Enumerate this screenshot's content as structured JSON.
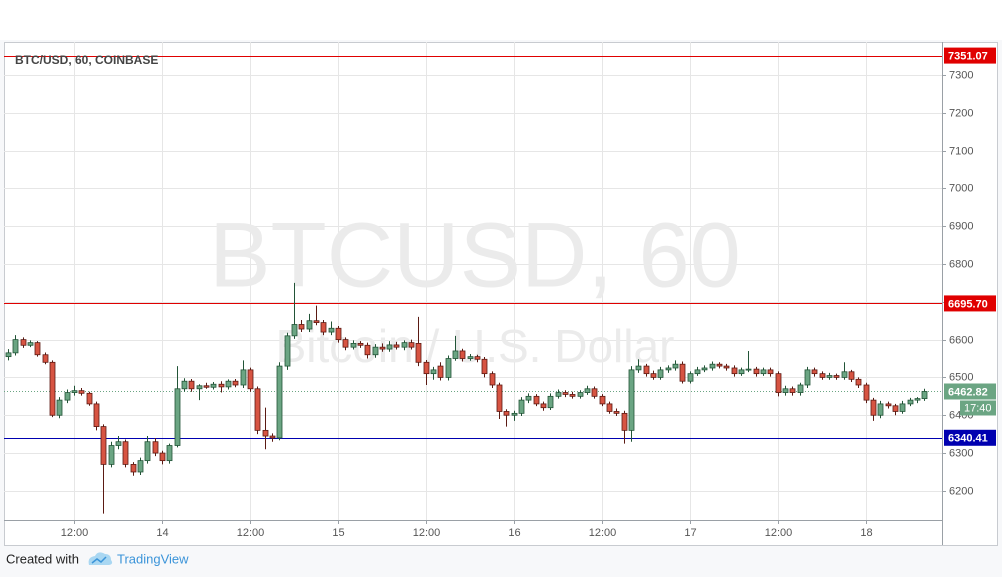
{
  "chart_data": {
    "type": "candlestick",
    "title": "BTC/USD, 60, COINBASE",
    "watermark": "BTCUSD, 60",
    "watermark_subtitle": "Bitcoin / U.S. Dollar",
    "categories": [
      null,
      null,
      null,
      null,
      null,
      null,
      null,
      null,
      null,
      "12:00",
      null,
      null,
      null,
      null,
      null,
      null,
      null,
      null,
      null,
      null,
      null,
      "14",
      null,
      null,
      null,
      null,
      null,
      null,
      null,
      null,
      null,
      null,
      null,
      "12:00",
      null,
      null,
      null,
      null,
      null,
      null,
      null,
      null,
      null,
      null,
      null,
      "15",
      null,
      null,
      null,
      null,
      null,
      null,
      null,
      null,
      null,
      null,
      null,
      "12:00",
      null,
      null,
      null,
      null,
      null,
      null,
      null,
      null,
      null,
      null,
      null,
      "16",
      null,
      null,
      null,
      null,
      null,
      null,
      null,
      null,
      null,
      null,
      null,
      "12:00",
      null,
      null,
      null,
      null,
      null,
      null,
      null,
      null,
      null,
      null,
      null,
      "17",
      null,
      null,
      null,
      null,
      null,
      null,
      null,
      null,
      null,
      null,
      null,
      "12:00",
      null,
      null,
      null,
      null,
      null,
      null,
      null,
      null,
      null,
      null,
      null,
      "18",
      null,
      null,
      null,
      null,
      null,
      null,
      null,
      null
    ],
    "ohlc": [
      [
        6555,
        6575,
        6545,
        6565
      ],
      [
        6565,
        6612,
        6558,
        6600
      ],
      [
        6600,
        6606,
        6578,
        6585
      ],
      [
        6585,
        6598,
        6580,
        6592
      ],
      [
        6592,
        6596,
        6555,
        6560
      ],
      [
        6560,
        6566,
        6535,
        6540
      ],
      [
        6540,
        6545,
        6395,
        6400
      ],
      [
        6400,
        6448,
        6392,
        6440
      ],
      [
        6440,
        6468,
        6432,
        6460
      ],
      [
        6460,
        6478,
        6452,
        6465
      ],
      [
        6465,
        6472,
        6452,
        6458
      ],
      [
        6458,
        6462,
        6425,
        6430
      ],
      [
        6430,
        6436,
        6360,
        6370
      ],
      [
        6370,
        6376,
        6140,
        6270
      ],
      [
        6270,
        6330,
        6262,
        6320
      ],
      [
        6320,
        6345,
        6310,
        6330
      ],
      [
        6330,
        6336,
        6262,
        6270
      ],
      [
        6270,
        6276,
        6240,
        6250
      ],
      [
        6250,
        6288,
        6242,
        6280
      ],
      [
        6280,
        6345,
        6272,
        6330
      ],
      [
        6330,
        6340,
        6292,
        6300
      ],
      [
        6300,
        6306,
        6270,
        6280
      ],
      [
        6280,
        6325,
        6272,
        6320
      ],
      [
        6320,
        6530,
        6315,
        6470
      ],
      [
        6470,
        6498,
        6462,
        6490
      ],
      [
        6490,
        6496,
        6462,
        6470
      ],
      [
        6470,
        6482,
        6440,
        6478
      ],
      [
        6478,
        6486,
        6470,
        6474
      ],
      [
        6474,
        6488,
        6468,
        6482
      ],
      [
        6482,
        6490,
        6460,
        6475
      ],
      [
        6475,
        6495,
        6468,
        6490
      ],
      [
        6490,
        6496,
        6474,
        6480
      ],
      [
        6480,
        6545,
        6472,
        6520
      ],
      [
        6520,
        6526,
        6462,
        6470
      ],
      [
        6470,
        6476,
        6350,
        6360
      ],
      [
        6360,
        6420,
        6310,
        6345
      ],
      [
        6345,
        6352,
        6330,
        6340
      ],
      [
        6340,
        6540,
        6334,
        6530
      ],
      [
        6530,
        6618,
        6520,
        6610
      ],
      [
        6610,
        6750,
        6602,
        6640
      ],
      [
        6640,
        6652,
        6620,
        6628
      ],
      [
        6628,
        6668,
        6620,
        6650
      ],
      [
        6650,
        6690,
        6638,
        6645
      ],
      [
        6645,
        6652,
        6612,
        6620
      ],
      [
        6620,
        6648,
        6612,
        6630
      ],
      [
        6630,
        6636,
        6592,
        6600
      ],
      [
        6600,
        6606,
        6572,
        6580
      ],
      [
        6580,
        6598,
        6574,
        6590
      ],
      [
        6590,
        6596,
        6578,
        6585
      ],
      [
        6585,
        6592,
        6550,
        6560
      ],
      [
        6560,
        6588,
        6552,
        6580
      ],
      [
        6580,
        6590,
        6568,
        6575
      ],
      [
        6575,
        6596,
        6568,
        6586
      ],
      [
        6586,
        6594,
        6574,
        6580
      ],
      [
        6580,
        6598,
        6572,
        6592
      ],
      [
        6592,
        6600,
        6574,
        6580
      ],
      [
        6590,
        6660,
        6530,
        6540
      ],
      [
        6540,
        6546,
        6480,
        6510
      ],
      [
        6510,
        6528,
        6494,
        6520
      ],
      [
        6530,
        6540,
        6492,
        6500
      ],
      [
        6500,
        6558,
        6492,
        6550
      ],
      [
        6550,
        6610,
        6544,
        6570
      ],
      [
        6570,
        6576,
        6542,
        6550
      ],
      [
        6550,
        6562,
        6544,
        6555
      ],
      [
        6555,
        6560,
        6540,
        6548
      ],
      [
        6548,
        6554,
        6500,
        6510
      ],
      [
        6510,
        6516,
        6472,
        6480
      ],
      [
        6480,
        6486,
        6390,
        6410
      ],
      [
        6410,
        6416,
        6370,
        6400
      ],
      [
        6400,
        6412,
        6385,
        6405
      ],
      [
        6405,
        6448,
        6398,
        6440
      ],
      [
        6440,
        6458,
        6432,
        6450
      ],
      [
        6450,
        6456,
        6424,
        6430
      ],
      [
        6430,
        6436,
        6412,
        6420
      ],
      [
        6420,
        6458,
        6414,
        6450
      ],
      [
        6450,
        6468,
        6444,
        6460
      ],
      [
        6460,
        6466,
        6448,
        6455
      ],
      [
        6455,
        6462,
        6444,
        6450
      ],
      [
        6450,
        6466,
        6444,
        6460
      ],
      [
        6460,
        6478,
        6454,
        6470
      ],
      [
        6470,
        6476,
        6444,
        6450
      ],
      [
        6450,
        6456,
        6424,
        6430
      ],
      [
        6430,
        6436,
        6404,
        6410
      ],
      [
        6410,
        6418,
        6398,
        6405
      ],
      [
        6405,
        6412,
        6325,
        6360
      ],
      [
        6360,
        6530,
        6330,
        6520
      ],
      [
        6520,
        6548,
        6512,
        6530
      ],
      [
        6530,
        6536,
        6502,
        6510
      ],
      [
        6510,
        6518,
        6494,
        6500
      ],
      [
        6500,
        6528,
        6494,
        6520
      ],
      [
        6520,
        6532,
        6512,
        6525
      ],
      [
        6525,
        6545,
        6518,
        6535
      ],
      [
        6535,
        6542,
        6484,
        6490
      ],
      [
        6490,
        6516,
        6484,
        6510
      ],
      [
        6510,
        6528,
        6504,
        6520
      ],
      [
        6520,
        6532,
        6514,
        6525
      ],
      [
        6525,
        6542,
        6518,
        6535
      ],
      [
        6535,
        6540,
        6524,
        6530
      ],
      [
        6530,
        6536,
        6518,
        6525
      ],
      [
        6525,
        6532,
        6502,
        6510
      ],
      [
        6510,
        6526,
        6504,
        6520
      ],
      [
        6520,
        6570,
        6514,
        6522
      ],
      [
        6522,
        6528,
        6502,
        6510
      ],
      [
        6510,
        6526,
        6504,
        6520
      ],
      [
        6520,
        6526,
        6502,
        6510
      ],
      [
        6510,
        6516,
        6450,
        6460
      ],
      [
        6460,
        6478,
        6452,
        6470
      ],
      [
        6470,
        6476,
        6452,
        6460
      ],
      [
        6460,
        6486,
        6452,
        6480
      ],
      [
        6480,
        6528,
        6472,
        6520
      ],
      [
        6520,
        6526,
        6502,
        6510
      ],
      [
        6510,
        6516,
        6494,
        6500
      ],
      [
        6500,
        6512,
        6494,
        6505
      ],
      [
        6505,
        6510,
        6494,
        6500
      ],
      [
        6500,
        6540,
        6494,
        6515
      ],
      [
        6515,
        6520,
        6488,
        6495
      ],
      [
        6495,
        6500,
        6472,
        6480
      ],
      [
        6480,
        6486,
        6432,
        6440
      ],
      [
        6440,
        6446,
        6385,
        6400
      ],
      [
        6400,
        6438,
        6392,
        6430
      ],
      [
        6430,
        6436,
        6418,
        6425
      ],
      [
        6425,
        6430,
        6400,
        6410
      ],
      [
        6410,
        6438,
        6404,
        6430
      ],
      [
        6430,
        6446,
        6424,
        6440
      ],
      [
        6440,
        6448,
        6432,
        6444
      ],
      [
        6444,
        6470,
        6438,
        6462.82
      ]
    ],
    "up_color": "#6ba583",
    "up_border": "#225437",
    "down_color": "#d75442",
    "down_border": "#5b1a13",
    "ylim": [
      6123,
      7387
    ],
    "yticks": [
      6200,
      6300,
      6400,
      6500,
      6600,
      6700,
      6800,
      6900,
      7000,
      7100,
      7200,
      7300
    ],
    "grid": true,
    "levels": [
      {
        "value": 7351.07,
        "color": "#e00000"
      },
      {
        "value": 6695.7,
        "label": "6695.70",
        "color": "#e00000"
      },
      {
        "value": 6340.41,
        "color": "#0000b0"
      }
    ],
    "last_price": 6462.82,
    "last_color": "#6ba583",
    "countdown": "17:40"
  },
  "footer": {
    "created_with": "Created with",
    "brand": "TradingView"
  }
}
